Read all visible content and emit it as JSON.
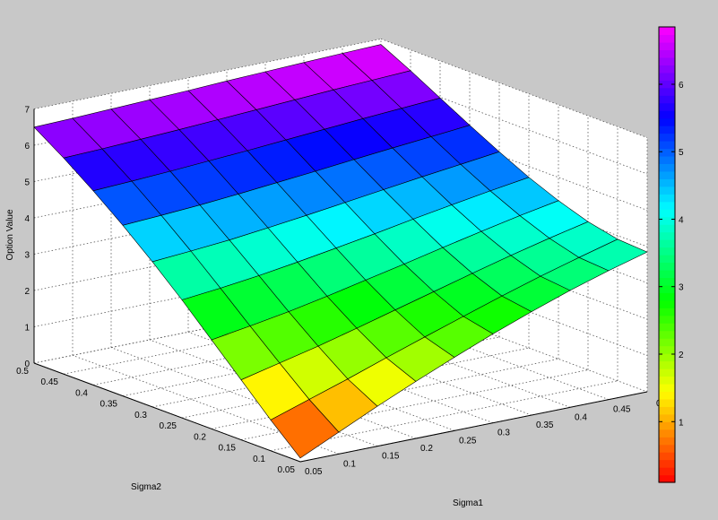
{
  "chart_data": {
    "type": "surface3d",
    "title": "",
    "xlabel": "Sigma1",
    "ylabel": "Sigma2",
    "zlabel": "Option Value",
    "x": [
      0.05,
      0.1,
      0.15,
      0.2,
      0.25,
      0.3,
      0.35,
      0.4,
      0.45,
      0.5
    ],
    "y": [
      0.05,
      0.1,
      0.15,
      0.2,
      0.25,
      0.3,
      0.35,
      0.4,
      0.45,
      0.5
    ],
    "xlim": [
      0.05,
      0.5
    ],
    "ylim": [
      0.05,
      0.5
    ],
    "zlim": [
      0,
      7
    ],
    "x_ticks": [
      "0.05",
      "0.1",
      "0.15",
      "0.2",
      "0.25",
      "0.3",
      "0.35",
      "0.4",
      "0.45"
    ],
    "y_ticks": [
      "0.05",
      "0.1",
      "0.15",
      "0.2",
      "0.25",
      "0.3",
      "0.35",
      "0.4",
      "0.45",
      "0.5"
    ],
    "z_ticks": [
      "0",
      "1",
      "2",
      "3",
      "4",
      "5",
      "6",
      "7"
    ],
    "x_end_label": "0",
    "colorbar": {
      "min": 0.1,
      "max": 6.85,
      "ticks": [
        "1",
        "2",
        "3",
        "4",
        "5",
        "6"
      ],
      "colormap": "hsv"
    },
    "grid": true,
    "legend": "none",
    "note": "z(sigma1,sigma2) values: rows indexed by Sigma2 (0.05..0.5), columns by Sigma1 (0.05..0.5)",
    "z": [
      [
        0.1,
        0.6,
        1.1,
        1.57,
        2.02,
        2.45,
        2.85,
        3.22,
        3.55,
        3.85
      ],
      [
        0.85,
        1.2,
        1.55,
        1.92,
        2.28,
        2.63,
        2.98,
        3.31,
        3.61,
        3.9
      ],
      [
        1.65,
        1.9,
        2.15,
        2.43,
        2.72,
        3.01,
        3.3,
        3.58,
        3.84,
        4.08
      ],
      [
        2.45,
        2.62,
        2.8,
        3.01,
        3.24,
        3.47,
        3.71,
        3.94,
        4.16,
        4.36
      ],
      [
        3.25,
        3.36,
        3.49,
        3.65,
        3.82,
        4.0,
        4.19,
        4.37,
        4.54,
        4.7
      ],
      [
        4.0,
        4.08,
        4.17,
        4.29,
        4.42,
        4.56,
        4.7,
        4.84,
        4.97,
        5.1
      ],
      [
        4.7,
        4.76,
        4.83,
        4.92,
        5.02,
        5.12,
        5.23,
        5.33,
        5.43,
        5.53
      ],
      [
        5.35,
        5.4,
        5.46,
        5.53,
        5.6,
        5.68,
        5.76,
        5.84,
        5.91,
        5.98
      ],
      [
        5.95,
        5.99,
        6.04,
        6.09,
        6.15,
        6.21,
        6.27,
        6.33,
        6.38,
        6.43
      ],
      [
        6.5,
        6.53,
        6.57,
        6.61,
        6.65,
        6.7,
        6.74,
        6.78,
        6.82,
        6.85
      ]
    ]
  }
}
